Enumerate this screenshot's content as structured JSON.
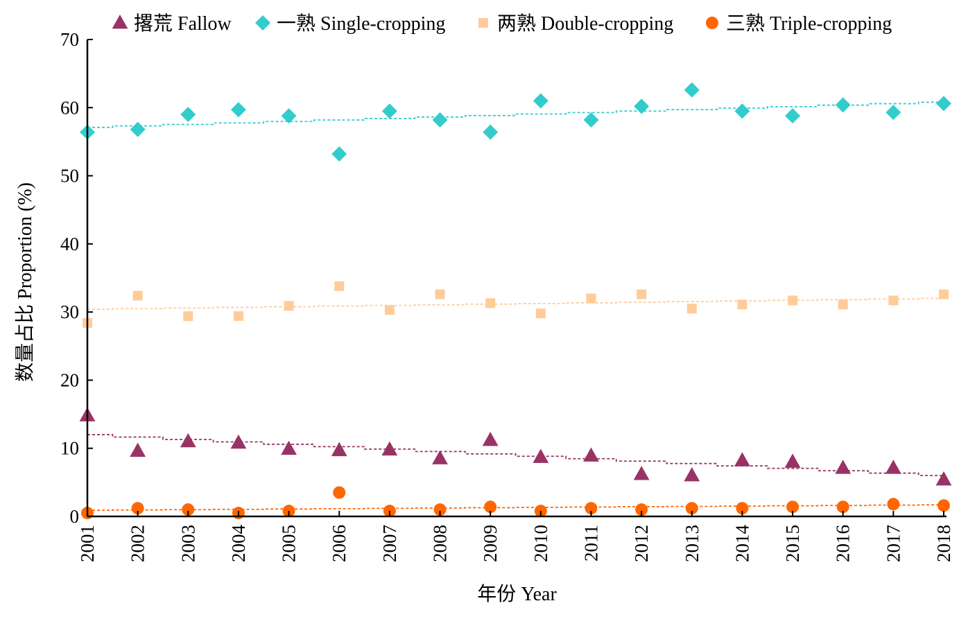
{
  "chart_data": {
    "type": "scatter",
    "title": "",
    "xlabel": "年份 Year",
    "ylabel": "数量占比 Proportion (%)",
    "ylim": [
      0,
      70
    ],
    "yticks": [
      0,
      10,
      20,
      30,
      40,
      50,
      60,
      70
    ],
    "grid": false,
    "legend_position": "top",
    "x": [
      "2001",
      "2002",
      "2003",
      "2004",
      "2005",
      "2006",
      "2007",
      "2008",
      "2009",
      "2010",
      "2011",
      "2012",
      "2013",
      "2014",
      "2015",
      "2016",
      "2017",
      "2018"
    ],
    "series": [
      {
        "name": "撂荒 Fallow",
        "marker": "triangle",
        "color": "#993366",
        "values": [
          14.8,
          9.6,
          11.0,
          10.8,
          9.9,
          9.7,
          9.8,
          8.5,
          11.2,
          8.7,
          8.9,
          6.2,
          6.0,
          8.2,
          8.0,
          7.1,
          7.1,
          5.4
        ],
        "trend": [
          12.0,
          6.0
        ]
      },
      {
        "name": "一熟 Single-cropping",
        "marker": "diamond",
        "color": "#33CCCC",
        "values": [
          56.4,
          56.8,
          59.0,
          59.7,
          58.8,
          53.2,
          59.5,
          58.2,
          56.4,
          61.0,
          58.2,
          60.2,
          62.6,
          59.5,
          58.8,
          60.4,
          59.3,
          60.6
        ],
        "trend": [
          57.1,
          60.8
        ]
      },
      {
        "name": "两熟 Double-cropping",
        "marker": "square",
        "color": "#FFCC99",
        "values": [
          28.4,
          32.4,
          29.4,
          29.4,
          30.9,
          33.8,
          30.3,
          32.6,
          31.3,
          29.8,
          32.0,
          32.6,
          30.5,
          31.1,
          31.7,
          31.1,
          31.7,
          32.6
        ],
        "trend": [
          30.4,
          32.0
        ]
      },
      {
        "name": "三熟 Triple-cropping",
        "marker": "circle",
        "color": "#FF6600",
        "values": [
          0.5,
          1.2,
          1.0,
          0.5,
          0.8,
          3.5,
          0.8,
          1.0,
          1.4,
          0.8,
          1.2,
          1.0,
          1.2,
          1.2,
          1.4,
          1.4,
          1.8,
          1.6
        ],
        "trend": [
          0.9,
          1.7
        ]
      }
    ]
  }
}
